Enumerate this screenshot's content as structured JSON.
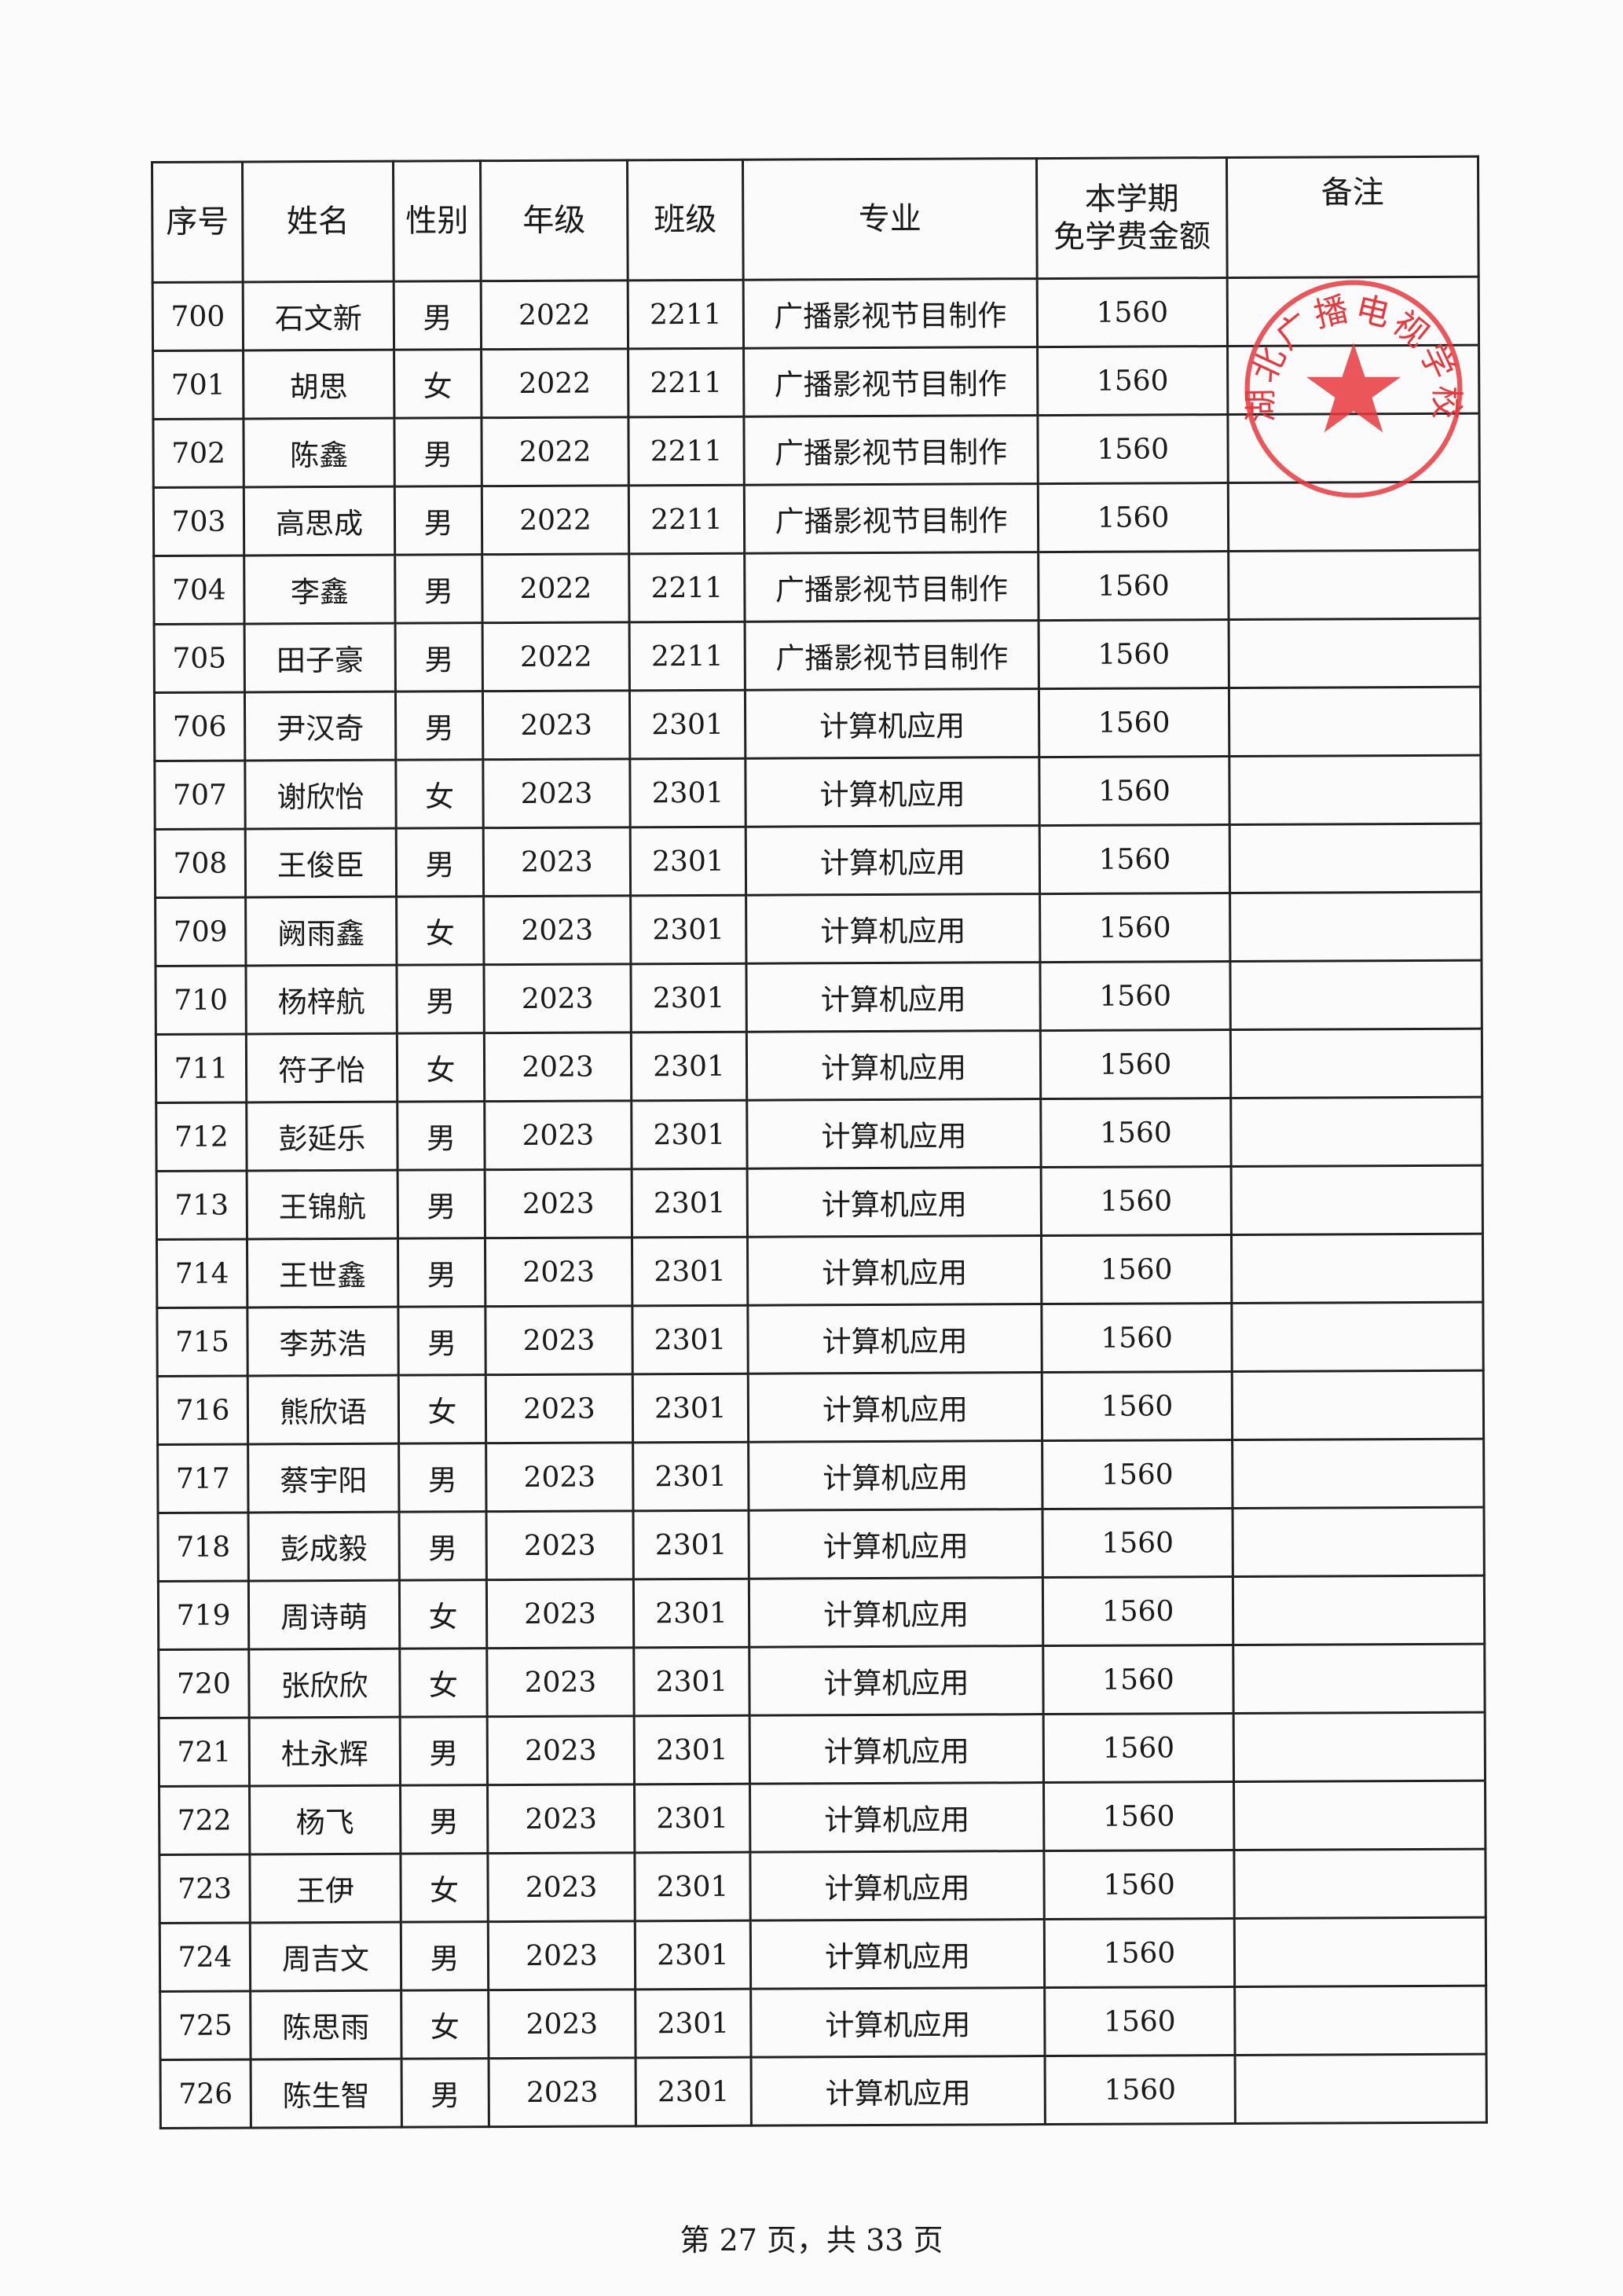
{
  "headers": [
    "序号",
    "姓名",
    "性别",
    "年级",
    "班级",
    "专业",
    "本学期\n免学费金额",
    "备注"
  ],
  "rows": [
    [
      "700",
      "石文新",
      "男",
      "2022",
      "2211",
      "广播影视节目制作",
      "1560",
      ""
    ],
    [
      "701",
      "胡思",
      "女",
      "2022",
      "2211",
      "广播影视节目制作",
      "1560",
      ""
    ],
    [
      "702",
      "陈鑫",
      "男",
      "2022",
      "2211",
      "广播影视节目制作",
      "1560",
      ""
    ],
    [
      "703",
      "高思成",
      "男",
      "2022",
      "2211",
      "广播影视节目制作",
      "1560",
      ""
    ],
    [
      "704",
      "李鑫",
      "男",
      "2022",
      "2211",
      "广播影视节目制作",
      "1560",
      ""
    ],
    [
      "705",
      "田子豪",
      "男",
      "2022",
      "2211",
      "广播影视节目制作",
      "1560",
      ""
    ],
    [
      "706",
      "尹汉奇",
      "男",
      "2023",
      "2301",
      "计算机应用",
      "1560",
      ""
    ],
    [
      "707",
      "谢欣怡",
      "女",
      "2023",
      "2301",
      "计算机应用",
      "1560",
      ""
    ],
    [
      "708",
      "王俊臣",
      "男",
      "2023",
      "2301",
      "计算机应用",
      "1560",
      ""
    ],
    [
      "709",
      "阙雨鑫",
      "女",
      "2023",
      "2301",
      "计算机应用",
      "1560",
      ""
    ],
    [
      "710",
      "杨梓航",
      "男",
      "2023",
      "2301",
      "计算机应用",
      "1560",
      ""
    ],
    [
      "711",
      "符子怡",
      "女",
      "2023",
      "2301",
      "计算机应用",
      "1560",
      ""
    ],
    [
      "712",
      "彭延乐",
      "男",
      "2023",
      "2301",
      "计算机应用",
      "1560",
      ""
    ],
    [
      "713",
      "王锦航",
      "男",
      "2023",
      "2301",
      "计算机应用",
      "1560",
      ""
    ],
    [
      "714",
      "王世鑫",
      "男",
      "2023",
      "2301",
      "计算机应用",
      "1560",
      ""
    ],
    [
      "715",
      "李苏浩",
      "男",
      "2023",
      "2301",
      "计算机应用",
      "1560",
      ""
    ],
    [
      "716",
      "熊欣语",
      "女",
      "2023",
      "2301",
      "计算机应用",
      "1560",
      ""
    ],
    [
      "717",
      "蔡宇阳",
      "男",
      "2023",
      "2301",
      "计算机应用",
      "1560",
      ""
    ],
    [
      "718",
      "彭成毅",
      "男",
      "2023",
      "2301",
      "计算机应用",
      "1560",
      ""
    ],
    [
      "719",
      "周诗萌",
      "女",
      "2023",
      "2301",
      "计算机应用",
      "1560",
      ""
    ],
    [
      "720",
      "张欣欣",
      "女",
      "2023",
      "2301",
      "计算机应用",
      "1560",
      ""
    ],
    [
      "721",
      "杜永辉",
      "男",
      "2023",
      "2301",
      "计算机应用",
      "1560",
      ""
    ],
    [
      "722",
      "杨飞",
      "男",
      "2023",
      "2301",
      "计算机应用",
      "1560",
      ""
    ],
    [
      "723",
      "王伊",
      "女",
      "2023",
      "2301",
      "计算机应用",
      "1560",
      ""
    ],
    [
      "724",
      "周吉文",
      "男",
      "2023",
      "2301",
      "计算机应用",
      "1560",
      ""
    ],
    [
      "725",
      "陈思雨",
      "女",
      "2023",
      "2301",
      "计算机应用",
      "1560",
      ""
    ],
    [
      "726",
      "陈生智",
      "男",
      "2023",
      "2301",
      "计算机应用",
      "1560",
      ""
    ]
  ],
  "footer": "第 27 页，共 33 页",
  "stamp": {
    "text": "湖北广播电视学校",
    "color": "#e8383d"
  }
}
